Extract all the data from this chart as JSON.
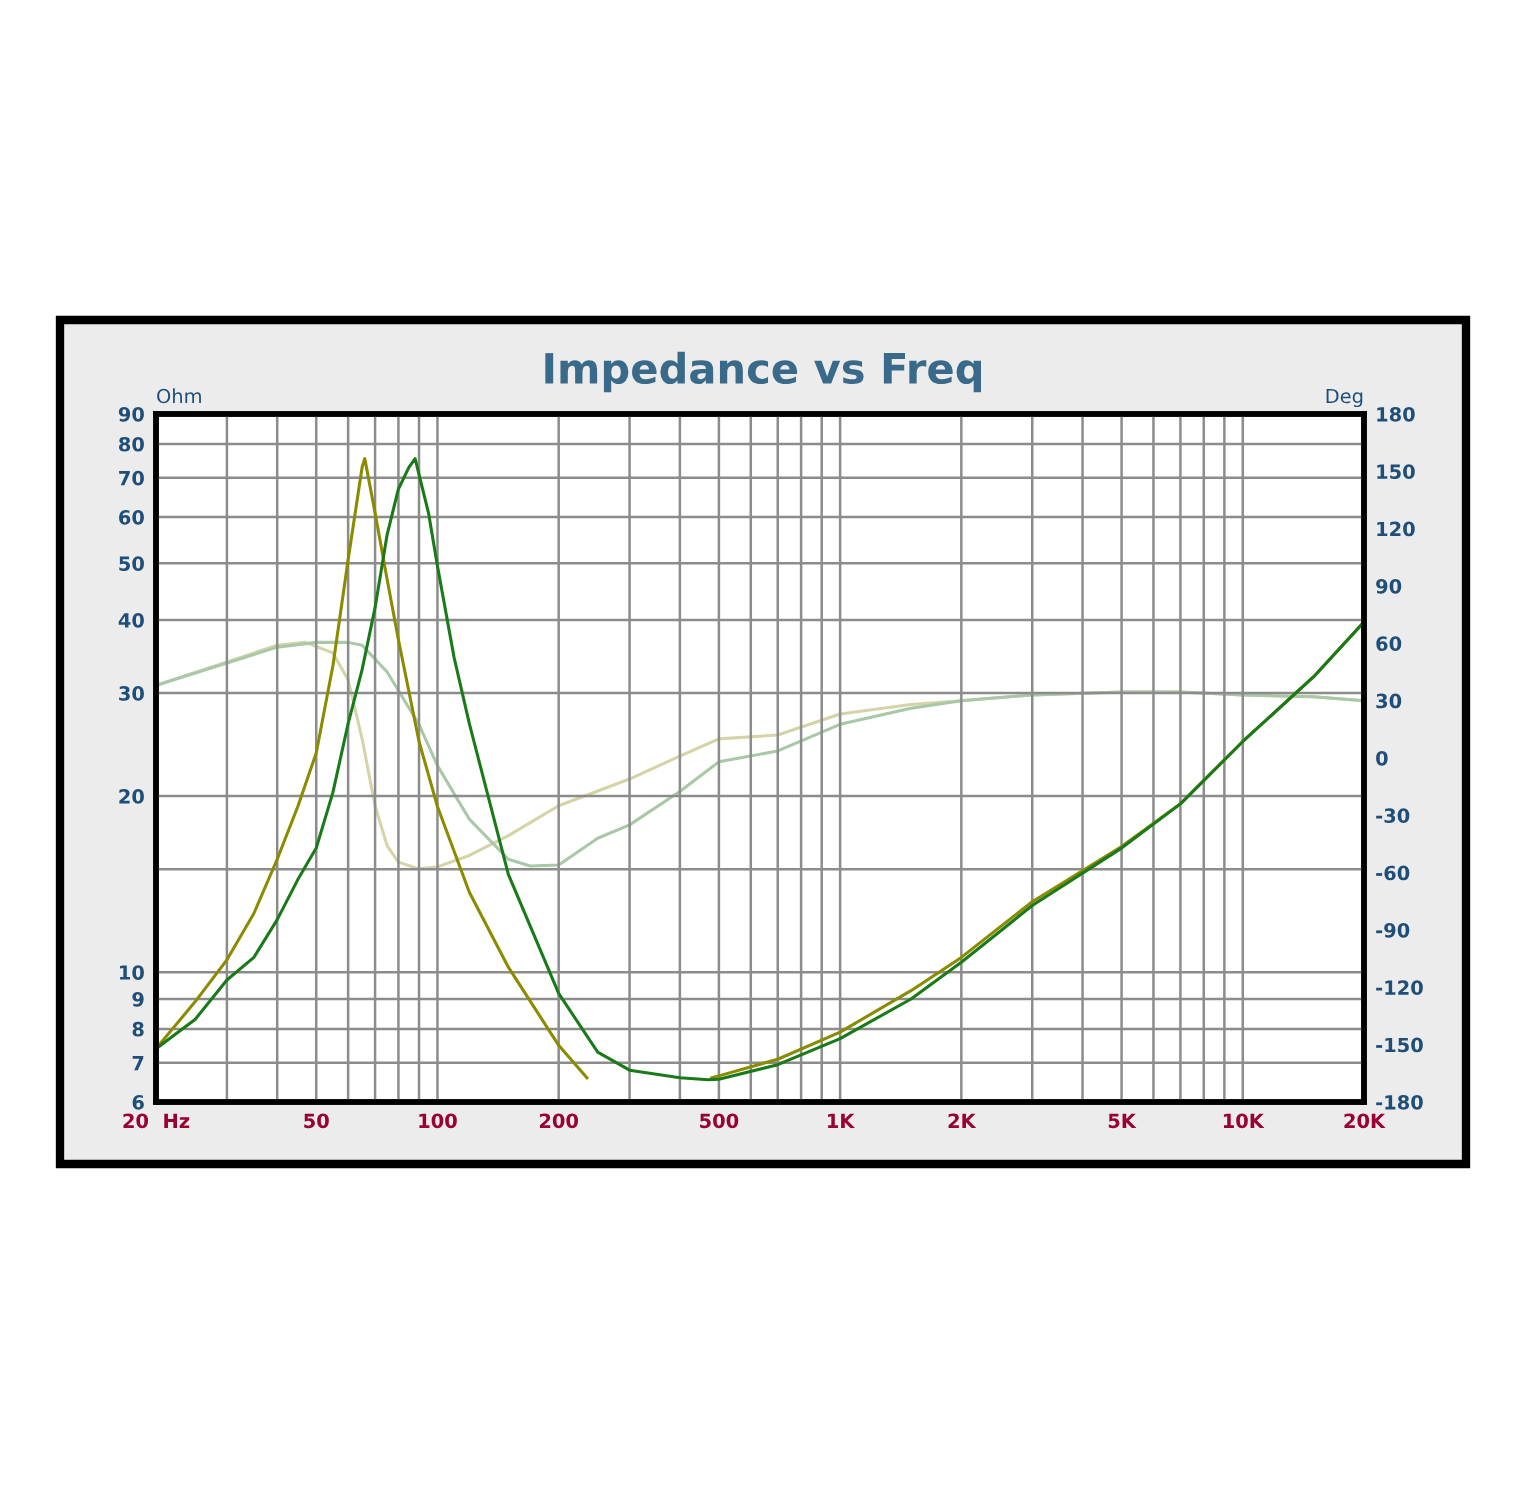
{
  "chart_data": {
    "type": "line",
    "title": "Impedance vs Freq",
    "ylabel": "Ohm",
    "y2label": "Deg",
    "log": "xy",
    "grid": true,
    "xlim": [
      20,
      20000
    ],
    "ylim": [
      6,
      90
    ],
    "y2lim": [
      -180,
      180
    ],
    "xticks": [
      {
        "value": 20,
        "label": "20  Hz"
      },
      {
        "value": 30,
        "label": null
      },
      {
        "value": 40,
        "label": null
      },
      50,
      {
        "value": 60,
        "label": null
      },
      {
        "value": 70,
        "label": null
      },
      {
        "value": 80,
        "label": null
      },
      {
        "value": 90,
        "label": null
      },
      100,
      200,
      {
        "value": 300,
        "label": null
      },
      {
        "value": 400,
        "label": null
      },
      500,
      {
        "value": 600,
        "label": null
      },
      {
        "value": 700,
        "label": null
      },
      {
        "value": 800,
        "label": null
      },
      {
        "value": 900,
        "label": null
      },
      {
        "value": 1000,
        "label": "1K"
      },
      {
        "value": 2000,
        "label": "2K"
      },
      {
        "value": 3000,
        "label": null
      },
      {
        "value": 4000,
        "label": null
      },
      {
        "value": 5000,
        "label": "5K"
      },
      {
        "value": 6000,
        "label": null
      },
      {
        "value": 7000,
        "label": null
      },
      {
        "value": 8000,
        "label": null
      },
      {
        "value": 9000,
        "label": null
      },
      {
        "value": 10000,
        "label": "10K"
      },
      {
        "value": 20000,
        "label": "20K"
      }
    ],
    "yticks": [
      6,
      7,
      8,
      9,
      10,
      {
        "value": 15,
        "label": null
      },
      20,
      30,
      40,
      50,
      60,
      70,
      80,
      90
    ],
    "y2ticks": [
      -180,
      -150,
      -120,
      -90,
      -60,
      -30,
      0,
      30,
      60,
      90,
      120,
      150,
      180
    ],
    "series": [
      {
        "color": "#d4d4a8",
        "axis": "y2",
        "x": [
          20,
          40,
          47,
          55,
          60,
          65,
          70,
          75,
          80,
          90,
          100,
          120,
          150,
          200,
          300,
          400,
          500,
          700,
          1000,
          1500,
          2000,
          3000,
          5000,
          7000,
          10000,
          15000,
          20000
        ],
        "values": [
          38,
          59,
          60.5,
          55,
          41,
          10,
          -25,
          -46,
          -54.5,
          -58,
          -57,
          -51,
          -40.6,
          -25,
          -11,
          1,
          10,
          12,
          23,
          28,
          30,
          33,
          34.5,
          34.5,
          33,
          32,
          30
        ]
      },
      {
        "color": "#a8c8a8",
        "axis": "y2",
        "x": [
          20,
          40,
          50,
          60,
          65,
          75,
          90,
          100,
          120,
          150,
          170,
          200,
          250,
          300,
          400,
          500,
          700,
          1000,
          1500,
          2000,
          3000,
          5000,
          7000,
          10000,
          15000,
          20000
        ],
        "values": [
          38,
          58,
          60.5,
          60.5,
          59,
          45,
          17.5,
          -4,
          -32,
          -53,
          -56.5,
          -56,
          -42,
          -35,
          -17.5,
          -2,
          3.7,
          17.6,
          26,
          30,
          33,
          34.5,
          34.5,
          33,
          32,
          30
        ]
      },
      {
        "color": "#8b8b00",
        "x": [
          20,
          25,
          30,
          35,
          40,
          45,
          50,
          55,
          60,
          65,
          66,
          70,
          75,
          80,
          90,
          100,
          120,
          150,
          200,
          235,
          350,
          480,
          500,
          700,
          1000,
          1500,
          2000,
          3000,
          5000,
          7000,
          10000,
          15000,
          20000
        ],
        "values": [
          7.4,
          8.9,
          10.5,
          12.6,
          15.6,
          19.2,
          23.7,
          33.4,
          50.7,
          73,
          75.5,
          61,
          46.9,
          37,
          24.8,
          19.2,
          13.7,
          10.2,
          7.5,
          6.6,
          null,
          6.6,
          6.65,
          7.1,
          7.9,
          9.3,
          10.6,
          13.2,
          16.4,
          19.4,
          24.8,
          32,
          39.7
        ]
      },
      {
        "color": "#1a7a1a",
        "x": [
          20,
          25,
          30,
          35,
          40,
          45,
          50,
          55,
          60,
          65,
          70,
          75,
          80,
          85,
          88,
          95,
          100,
          110,
          120,
          150,
          200,
          250,
          300,
          400,
          470,
          500,
          700,
          1000,
          1500,
          2000,
          3000,
          5000,
          7000,
          10000,
          15000,
          20000
        ],
        "values": [
          7.4,
          8.3,
          9.7,
          10.6,
          12.3,
          14.4,
          16.3,
          20.3,
          26.6,
          32.9,
          42,
          56,
          67,
          73,
          75.5,
          61,
          49.5,
          34.5,
          26.6,
          14.7,
          9.2,
          7.3,
          6.8,
          6.6,
          6.55,
          6.56,
          6.95,
          7.7,
          9.0,
          10.4,
          13,
          16.3,
          19.4,
          24.8,
          32,
          39.7
        ]
      }
    ]
  }
}
